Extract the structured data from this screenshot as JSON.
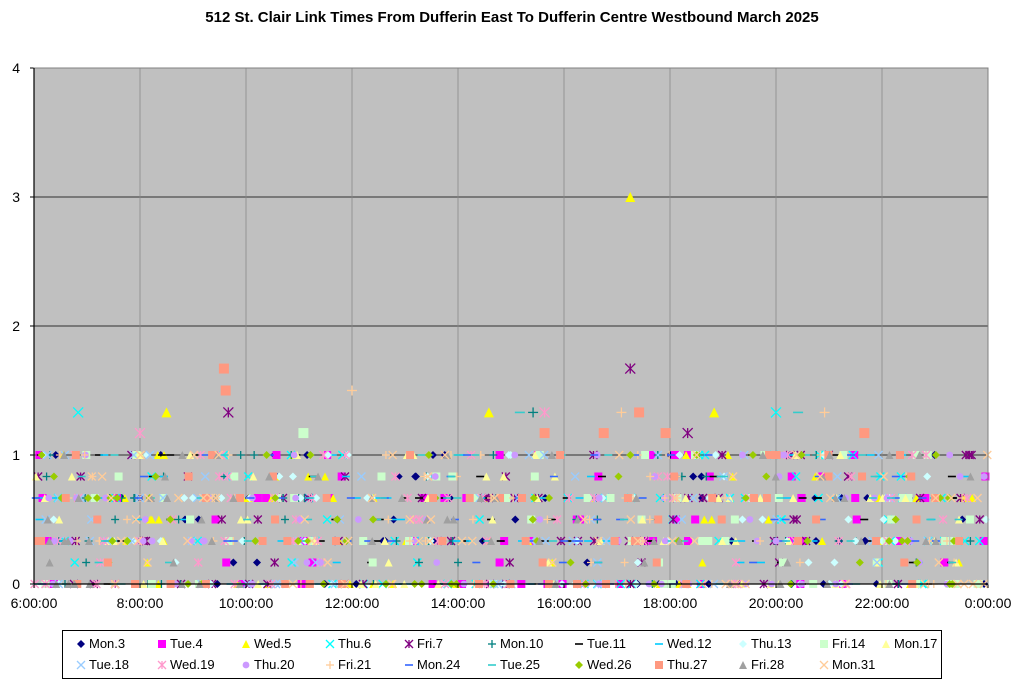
{
  "chart_data": {
    "type": "scatter",
    "title": "512 St. Clair Link Times From Dufferin East To Dufferin Centre Westbound March 2025",
    "xlabel": "",
    "ylabel": "",
    "xlim": [
      "6:00:00",
      "0:00:00"
    ],
    "ylim": [
      0,
      4
    ],
    "x_ticks": [
      "6:00:00",
      "8:00:00",
      "10:00:00",
      "12:00:00",
      "14:00:00",
      "16:00:00",
      "18:00:00",
      "20:00:00",
      "22:00:00",
      "0:00:00"
    ],
    "y_ticks": [
      "0",
      "1",
      "2",
      "3",
      "4"
    ],
    "grid": true,
    "background": "#c0c0c0",
    "legend_position": "bottom",
    "series": [
      {
        "name": "Mon.3",
        "marker": "diamond",
        "color": "#000080"
      },
      {
        "name": "Tue.4",
        "marker": "square",
        "color": "#ff00ff"
      },
      {
        "name": "Wed.5",
        "marker": "triangle",
        "color": "#ffff00"
      },
      {
        "name": "Thu.6",
        "marker": "x",
        "color": "#00ffff"
      },
      {
        "name": "Fri.7",
        "marker": "star",
        "color": "#800080"
      },
      {
        "name": "Mon.10",
        "marker": "plus",
        "color": "#008080"
      },
      {
        "name": "Tue.11",
        "marker": "dash",
        "color": "#000000"
      },
      {
        "name": "Wed.12",
        "marker": "dash",
        "color": "#00ccff"
      },
      {
        "name": "Thu.13",
        "marker": "diamond",
        "color": "#ccffff"
      },
      {
        "name": "Fri.14",
        "marker": "square",
        "color": "#ccffcc"
      },
      {
        "name": "Mon.17",
        "marker": "triangle",
        "color": "#ffff99"
      },
      {
        "name": "Tue.18",
        "marker": "x",
        "color": "#99ccff"
      },
      {
        "name": "Wed.19",
        "marker": "star",
        "color": "#ff99cc"
      },
      {
        "name": "Thu.20",
        "marker": "circle",
        "color": "#cc99ff"
      },
      {
        "name": "Fri.21",
        "marker": "plus",
        "color": "#ffcc99"
      },
      {
        "name": "Mon.24",
        "marker": "dash",
        "color": "#3366ff"
      },
      {
        "name": "Tue.25",
        "marker": "dash",
        "color": "#33cccc"
      },
      {
        "name": "Wed.26",
        "marker": "diamond",
        "color": "#99cc00"
      },
      {
        "name": "Thu.27",
        "marker": "square",
        "color": "#ff9980"
      },
      {
        "name": "Fri.28",
        "marker": "triangle",
        "color": "#a0a0a0"
      },
      {
        "name": "Mon.31",
        "marker": "x",
        "color": "#ffcc99"
      }
    ],
    "levels": [
      0,
      0.1667,
      0.3333,
      0.5,
      0.6667,
      0.8333,
      1.0
    ],
    "points": [
      {
        "series": "Wed.5",
        "x": "17:15",
        "y": 3.0
      },
      {
        "series": "Fri.7",
        "x": "17:15",
        "y": 1.67
      },
      {
        "series": "Thu.27",
        "x": "9:35",
        "y": 1.67
      },
      {
        "series": "Thu.27",
        "x": "9:37",
        "y": 1.5
      },
      {
        "series": "Fri.7",
        "x": "9:40",
        "y": 1.33
      },
      {
        "series": "Wed.5",
        "x": "8:30",
        "y": 1.33
      },
      {
        "series": "Fri.21",
        "x": "12:00",
        "y": 1.5
      },
      {
        "series": "Wed.5",
        "x": "14:35",
        "y": 1.33
      },
      {
        "series": "Tue.25",
        "x": "15:10",
        "y": 1.33
      },
      {
        "series": "Mon.10",
        "x": "15:25",
        "y": 1.33
      },
      {
        "series": "Wed.19",
        "x": "15:38",
        "y": 1.33
      },
      {
        "series": "Fri.21",
        "x": "17:05",
        "y": 1.33
      },
      {
        "series": "Thu.27",
        "x": "17:25",
        "y": 1.33
      },
      {
        "series": "Wed.5",
        "x": "18:50",
        "y": 1.33
      },
      {
        "series": "Thu.6",
        "x": "20:00",
        "y": 1.33
      },
      {
        "series": "Tue.25",
        "x": "20:25",
        "y": 1.33
      },
      {
        "series": "Fri.21",
        "x": "20:55",
        "y": 1.33
      },
      {
        "series": "Thu.27",
        "x": "15:38",
        "y": 1.17
      },
      {
        "series": "Thu.27",
        "x": "16:45",
        "y": 1.17
      },
      {
        "series": "Thu.27",
        "x": "17:55",
        "y": 1.17
      },
      {
        "series": "Fri.7",
        "x": "18:20",
        "y": 1.17
      },
      {
        "series": "Thu.27",
        "x": "21:40",
        "y": 1.17
      },
      {
        "series": "Fri.14",
        "x": "11:05",
        "y": 1.17
      },
      {
        "series": "Wed.19",
        "x": "8:00",
        "y": 1.17
      },
      {
        "series": "Thu.6",
        "x": "6:50",
        "y": 1.33
      }
    ]
  },
  "legend": [
    "Mon.3",
    "Tue.4",
    "Wed.5",
    "Thu.6",
    "Fri.7",
    "Mon.10",
    "Tue.11",
    "Wed.12",
    "Thu.13",
    "Fri.14",
    "Mon.17",
    "Tue.18",
    "Wed.19",
    "Thu.20",
    "Fri.21",
    "Mon.24",
    "Tue.25",
    "Wed.26",
    "Thu.27",
    "Fri.28",
    "Mon.31"
  ]
}
